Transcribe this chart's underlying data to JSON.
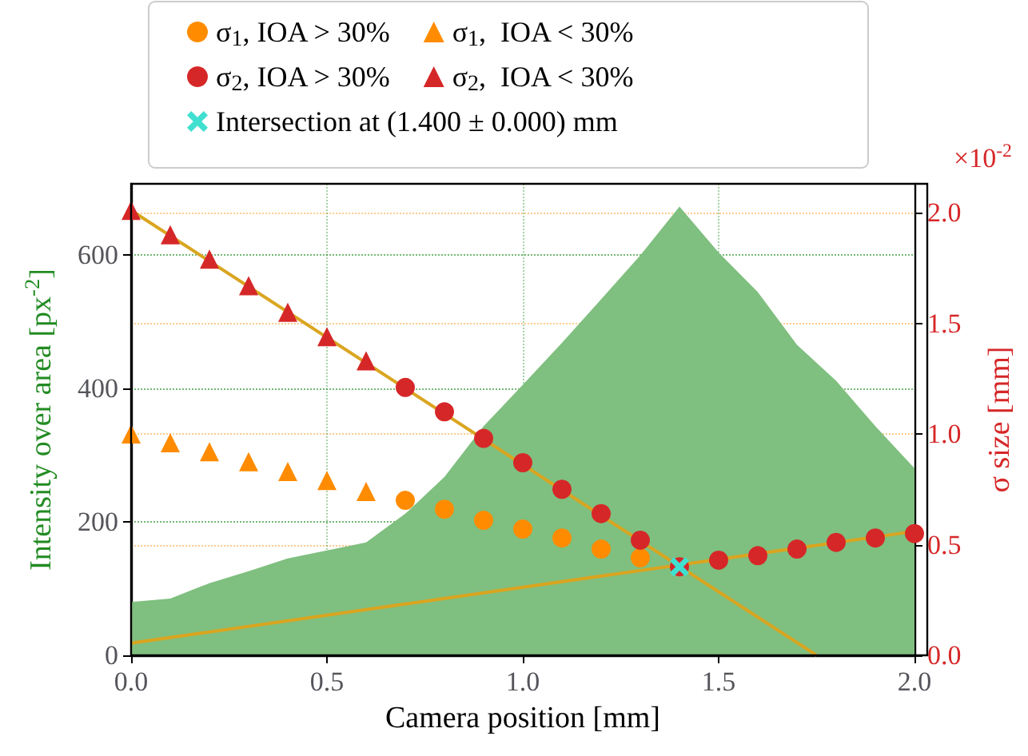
{
  "chart_data": {
    "type": "scatter",
    "xlabel": "Camera position [mm]",
    "ylabel": "Intensity over area [px$^{-2}$]",
    "y2label": "σ size [mm]",
    "annotations": [
      "×10$^{-2}$"
    ],
    "xlim": [
      0,
      2.0
    ],
    "xticks": [
      {
        "value": 0,
        "label": "0.0"
      },
      {
        "value": 0.5,
        "label": "0.5"
      },
      {
        "value": 1,
        "label": "1.0"
      },
      {
        "value": 1.5,
        "label": "1.5"
      },
      {
        "value": 2,
        "label": "2.0"
      }
    ],
    "ylim": [
      0,
      706
    ],
    "yticks": [
      0,
      200,
      400,
      600
    ],
    "y2lim": [
      0,
      2.13
    ],
    "y2ticks": [
      {
        "value": 0,
        "label": "0.0"
      },
      {
        "value": 0.5,
        "label": "0.5"
      },
      {
        "value": 1,
        "label": "1.0"
      },
      {
        "value": 1.5,
        "label": "1.5"
      },
      {
        "value": 2,
        "label": "2.0"
      }
    ],
    "grid": true,
    "legend": "top",
    "series": [
      {
        "type": "area",
        "color": "#7fbf7f",
        "x": [
          0,
          0.1,
          0.2,
          0.3,
          0.4,
          0.5,
          0.6,
          0.7,
          0.8,
          0.9,
          1.0,
          1.1,
          1.2,
          1.3,
          1.4,
          1.5,
          1.6,
          1.7,
          1.8,
          1.9,
          2.0
        ],
        "values": [
          80,
          85,
          108,
          126,
          145,
          157,
          169,
          212,
          267,
          343,
          405,
          468,
          533,
          599,
          672,
          603,
          544,
          465,
          411,
          343,
          280
        ]
      },
      {
        "type": "line",
        "axis": "y2",
        "color": "#daa520",
        "marker": "none",
        "x": [
          0,
          1.75
        ],
        "values": [
          2.01,
          0
        ]
      },
      {
        "type": "line",
        "axis": "y2",
        "color": "#daa520",
        "marker": "none",
        "x": [
          0,
          2.0
        ],
        "values": [
          0.055,
          0.56
        ]
      },
      {
        "name": "σ$_{1}$, IOA > 30%",
        "axis": "y2",
        "color": "#ff8c00",
        "marker": "circle",
        "x": [
          0.7,
          0.8,
          0.9,
          1.0,
          1.1,
          1.2,
          1.3
        ],
        "values": [
          0.7,
          0.66,
          0.61,
          0.57,
          0.53,
          0.48,
          0.44
        ]
      },
      {
        "name": "σ$_{1}$,  IOA < 30%",
        "axis": "y2",
        "color": "#ff8c00",
        "marker": "triangle",
        "x": [
          0,
          0.1,
          0.2,
          0.3,
          0.4,
          0.5,
          0.6
        ],
        "values": [
          1.0,
          0.96,
          0.92,
          0.875,
          0.83,
          0.79,
          0.74
        ]
      },
      {
        "name": "σ$_{2}$, IOA > 30%",
        "axis": "y2",
        "color": "#d62728",
        "marker": "circle",
        "x": [
          0.7,
          0.8,
          0.9,
          1.0,
          1.1,
          1.2,
          1.3,
          1.4,
          1.5,
          1.6,
          1.7,
          1.8,
          1.9,
          2.0
        ],
        "values": [
          1.21,
          1.1,
          0.98,
          0.87,
          0.75,
          0.64,
          0.52,
          0.4,
          0.43,
          0.45,
          0.48,
          0.51,
          0.53,
          0.55
        ]
      },
      {
        "name": "σ$_{2}$,  IOA < 30%",
        "axis": "y2",
        "color": "#d62728",
        "marker": "triangle",
        "x": [
          0,
          0.1,
          0.2,
          0.3,
          0.4,
          0.5,
          0.6
        ],
        "values": [
          2.01,
          1.9,
          1.79,
          1.67,
          1.55,
          1.44,
          1.33
        ]
      },
      {
        "name": "Intersection at (1.400 ± 0.000) mm",
        "axis": "y2",
        "color": "#40e0d0",
        "marker": "cross",
        "x": [
          1.4
        ],
        "values": [
          0.4
        ]
      }
    ]
  }
}
